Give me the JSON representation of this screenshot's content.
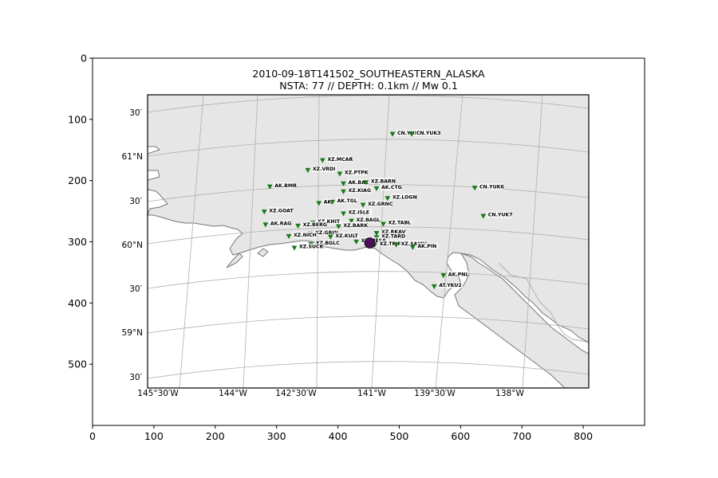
{
  "chart_data": {
    "type": "scatter",
    "title": "2010-09-18T141502_SOUTHEASTERN_ALASKA",
    "subtitle": "NSTA: 77 // DEPTH: 0.1km // Mw 0.1",
    "xlim": [
      0,
      900
    ],
    "ylim": [
      600,
      0
    ],
    "x_ticks": [
      0,
      100,
      200,
      300,
      400,
      500,
      600,
      700,
      800
    ],
    "y_ticks": [
      0,
      100,
      200,
      300,
      400,
      500
    ],
    "map": {
      "background": "#ffffff",
      "land_color": "#e6e6e6",
      "coast_color": "#777777",
      "grid_color": "#b0b0b0",
      "lat_labels": [
        "30′",
        "61°N",
        "30′",
        "60°N",
        "30′",
        "59°N",
        "30′"
      ],
      "lon_labels": [
        "145°30′W",
        "144°W",
        "142°30′W",
        "141°W",
        "139°30′W",
        "138°W"
      ]
    },
    "event": {
      "x": 452,
      "y": 302,
      "color": "#4b0f5a"
    },
    "station_color": "#1a7a1a",
    "stations": [
      {
        "name": "CN.YUK3",
        "x": 489,
        "y": 124
      },
      {
        "name": "CN.YUK3",
        "x": 520,
        "y": 124
      },
      {
        "name": "XZ.MCAR",
        "x": 375,
        "y": 167
      },
      {
        "name": "XZ.VRDI",
        "x": 351,
        "y": 183
      },
      {
        "name": "XZ.PTPK",
        "x": 403,
        "y": 189
      },
      {
        "name": "AK.BAL",
        "x": 409,
        "y": 205
      },
      {
        "name": "XZ.BARN",
        "x": 446,
        "y": 203
      },
      {
        "name": "AK.BMR",
        "x": 289,
        "y": 210
      },
      {
        "name": "AK.CTG",
        "x": 463,
        "y": 213
      },
      {
        "name": "XZ.KIAG",
        "x": 409,
        "y": 218
      },
      {
        "name": "CN.YUK6",
        "x": 623,
        "y": 212
      },
      {
        "name": "XZ.LOGN",
        "x": 481,
        "y": 229
      },
      {
        "name": "AK.TGL",
        "x": 391,
        "y": 235
      },
      {
        "name": "AK",
        "x": 369,
        "y": 237
      },
      {
        "name": "XZ.GRNC",
        "x": 441,
        "y": 240
      },
      {
        "name": "XZ.GOAT",
        "x": 280,
        "y": 251
      },
      {
        "name": "XZ.ISLE",
        "x": 409,
        "y": 254
      },
      {
        "name": "CN.YUK7",
        "x": 637,
        "y": 258
      },
      {
        "name": "XZ.BAGL",
        "x": 422,
        "y": 266
      },
      {
        "name": "XZ.KHIT",
        "x": 359,
        "y": 269
      },
      {
        "name": "AK.RAG",
        "x": 282,
        "y": 272
      },
      {
        "name": "XZ.BERG",
        "x": 335,
        "y": 274
      },
      {
        "name": "XZ.BARK",
        "x": 401,
        "y": 275
      },
      {
        "name": "XZ.TABL",
        "x": 474,
        "y": 271
      },
      {
        "name": "XZ.RKAV",
        "x": 463,
        "y": 286
      },
      {
        "name": "XZ.GRIN",
        "x": 355,
        "y": 287
      },
      {
        "name": "XZ.NICH",
        "x": 320,
        "y": 291
      },
      {
        "name": "XZ.KULT",
        "x": 388,
        "y": 292
      },
      {
        "name": "XZ.TARD",
        "x": 463,
        "y": 293
      },
      {
        "name": "XZ.MESA",
        "x": 430,
        "y": 300
      },
      {
        "name": "XZ.BGLC",
        "x": 356,
        "y": 304
      },
      {
        "name": "XZ.TRIP",
        "x": 460,
        "y": 305
      },
      {
        "name": "XZ.SAMH",
        "x": 495,
        "y": 305
      },
      {
        "name": "XZ.SUCK",
        "x": 329,
        "y": 310
      },
      {
        "name": "AK.PIN",
        "x": 522,
        "y": 309
      },
      {
        "name": "AK.PNL",
        "x": 572,
        "y": 355
      },
      {
        "name": "AT.YKU2",
        "x": 557,
        "y": 373
      }
    ]
  }
}
